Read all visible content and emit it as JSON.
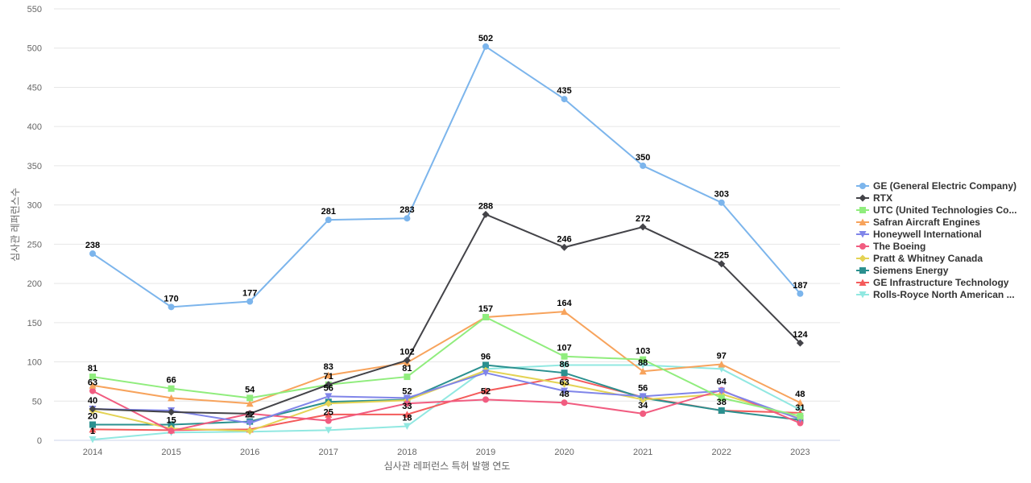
{
  "chart_data": {
    "type": "line",
    "xlabel": "심사관 레퍼런스 특허 발행 연도",
    "ylabel": "심사관 레퍼런스수",
    "ylim": [
      0,
      550
    ],
    "yticks": [
      0,
      50,
      100,
      150,
      200,
      250,
      300,
      350,
      400,
      450,
      500,
      550
    ],
    "grid": true,
    "legend_position": "right",
    "categories": [
      "2014",
      "2015",
      "2016",
      "2017",
      "2018",
      "2019",
      "2020",
      "2021",
      "2022",
      "2023"
    ],
    "series": [
      {
        "name": "GE (General Electric Company)",
        "color": "#7cb5ec",
        "marker": "circle",
        "values": [
          238,
          170,
          177,
          281,
          283,
          502,
          435,
          350,
          303,
          187
        ],
        "labeled": true
      },
      {
        "name": "RTX",
        "color": "#434348",
        "marker": "diamond",
        "values": [
          40,
          36,
          34,
          71,
          102,
          288,
          246,
          272,
          225,
          124
        ],
        "labeled": [
          false,
          false,
          false,
          false,
          true,
          true,
          true,
          true,
          true,
          true
        ]
      },
      {
        "name": "UTC (United Technologies Co...",
        "color": "#90ed7d",
        "marker": "square",
        "values": [
          81,
          66,
          54,
          71,
          81,
          157,
          107,
          103,
          54,
          31
        ],
        "labeled": [
          true,
          true,
          true,
          true,
          true,
          false,
          true,
          true,
          false,
          true
        ]
      },
      {
        "name": "Safran Aircraft Engines",
        "color": "#f7a35c",
        "marker": "triangle",
        "values": [
          70,
          54,
          47,
          83,
          99,
          157,
          164,
          88,
          97,
          48
        ],
        "labeled": [
          false,
          false,
          false,
          true,
          false,
          true,
          true,
          true,
          true,
          true
        ]
      },
      {
        "name": "Honeywell International",
        "color": "#8085e9",
        "marker": "triangle-down",
        "values": [
          40,
          38,
          22,
          56,
          54,
          86,
          63,
          56,
          63,
          27
        ],
        "labeled": [
          true,
          false,
          true,
          true,
          false,
          false,
          true,
          true,
          false,
          false
        ]
      },
      {
        "name": "The Boeing",
        "color": "#f15c80",
        "marker": "circle",
        "values": [
          63,
          12,
          34,
          25,
          47,
          52,
          48,
          34,
          64,
          22
        ],
        "labeled": [
          true,
          false,
          false,
          true,
          false,
          true,
          true,
          true,
          true,
          false
        ]
      },
      {
        "name": "Pratt & Whitney Canada",
        "color": "#e4d354",
        "marker": "diamond",
        "values": [
          38,
          15,
          12,
          47,
          51,
          89,
          72,
          52,
          59,
          28
        ],
        "labeled": [
          false,
          true,
          false,
          false,
          false,
          false,
          false,
          false,
          false,
          false
        ]
      },
      {
        "name": "Siemens Energy",
        "color": "#2b908f",
        "marker": "square",
        "values": [
          20,
          20,
          24,
          49,
          52,
          96,
          86,
          54,
          38,
          26
        ],
        "labeled": [
          true,
          false,
          false,
          false,
          true,
          true,
          true,
          false,
          true,
          false
        ]
      },
      {
        "name": "GE Infrastructure Technology",
        "color": "#f45b5b",
        "marker": "triangle",
        "values": [
          14,
          13,
          14,
          33,
          33,
          63,
          81,
          55,
          38,
          35
        ],
        "labeled": [
          false,
          false,
          false,
          false,
          true,
          false,
          false,
          false,
          false,
          false
        ]
      },
      {
        "name": "Rolls-Royce North American ...",
        "color": "#91e8e1",
        "marker": "triangle-down",
        "values": [
          1,
          10,
          11,
          13,
          18,
          91,
          96,
          96,
          91,
          39
        ],
        "labeled": [
          true,
          false,
          false,
          false,
          true,
          false,
          false,
          false,
          false,
          false
        ]
      }
    ]
  }
}
